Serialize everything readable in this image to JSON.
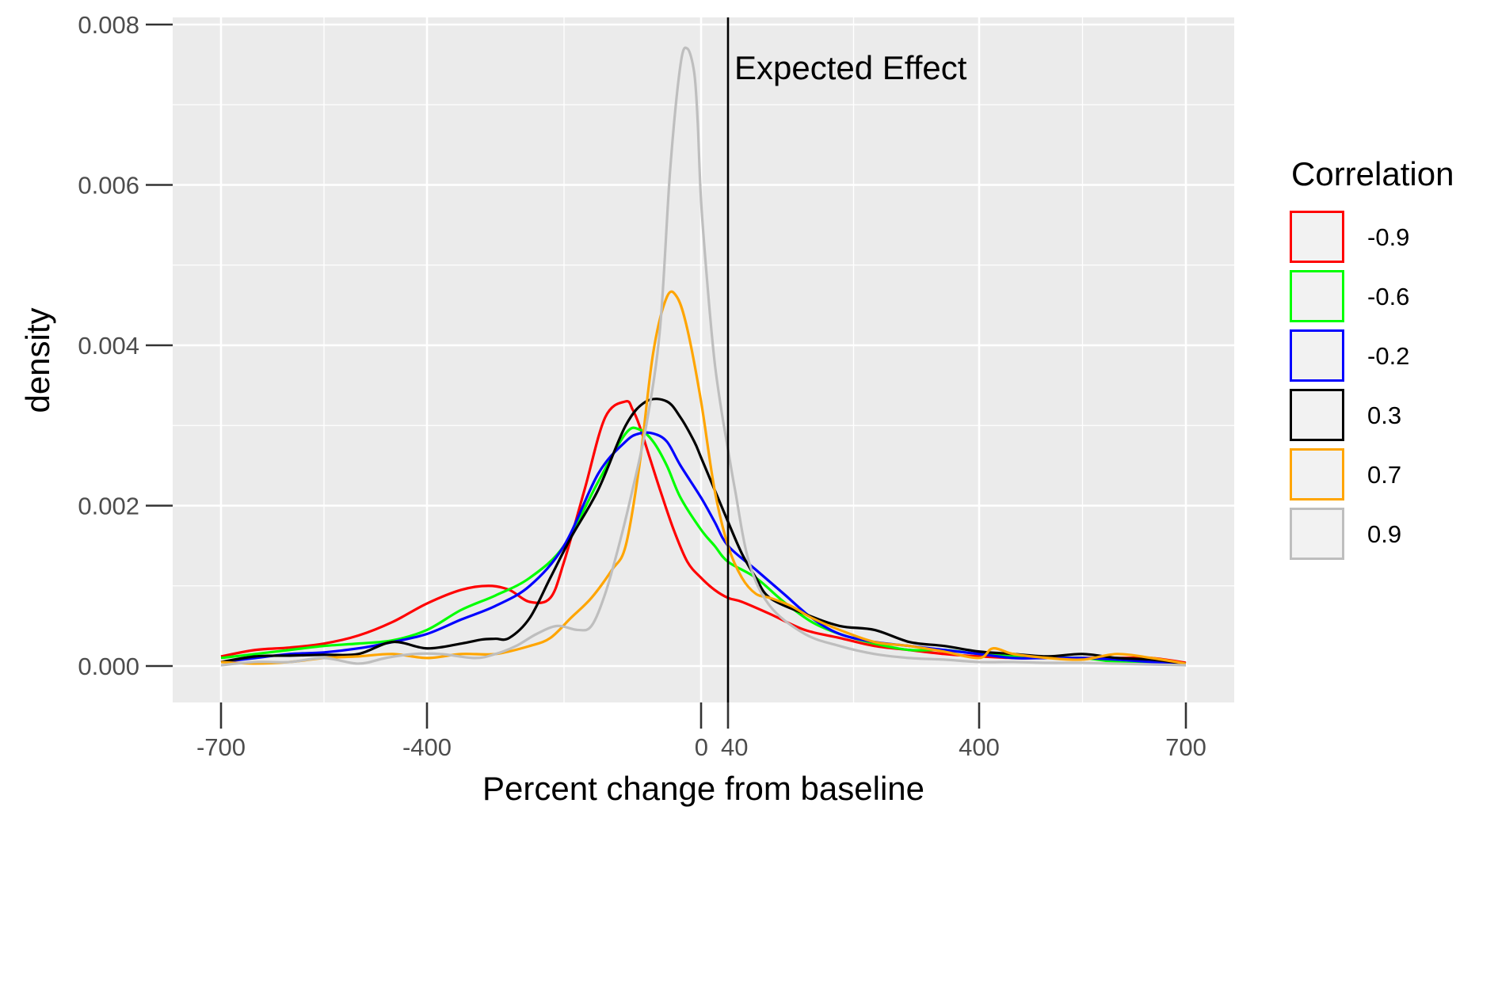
{
  "chart_data": {
    "type": "line",
    "xlabel": "Percent change from baseline",
    "ylabel": "density",
    "xlim": [
      -723,
      723
    ],
    "ylim": [
      -0.0004,
      0.0081
    ],
    "xticks": [
      -700,
      -400,
      0,
      40,
      400,
      700
    ],
    "xtick_labels": [
      "-700",
      "-400",
      "0",
      "40",
      "400",
      "700"
    ],
    "xtick_minor": [
      -550,
      -200,
      220,
      550
    ],
    "yticks": [
      0,
      0.002,
      0.004,
      0.006,
      0.008
    ],
    "ytick_labels": [
      "0.000",
      "0.002",
      "0.004",
      "0.006",
      "0.008"
    ],
    "grid": true,
    "legend": {
      "title": "Correlation",
      "position": "right"
    },
    "annotation": {
      "label": "Expected Effect",
      "x": 40
    },
    "series": [
      {
        "name": "-0.9",
        "color": "#ff0000",
        "x": [
          -700,
          -650,
          -600,
          -550,
          -500,
          -450,
          -400,
          -350,
          -310,
          -280,
          -250,
          -220,
          -200,
          -170,
          -140,
          -110,
          -100,
          -90,
          -75,
          -60,
          -40,
          -20,
          0,
          20,
          40,
          60,
          100,
          150,
          200,
          250,
          300,
          350,
          400,
          450,
          500,
          550,
          600,
          650,
          700
        ],
        "y": [
          0.00012,
          0.0002,
          0.00023,
          0.00028,
          0.00038,
          0.00055,
          0.00078,
          0.00095,
          0.001,
          0.00095,
          0.0008,
          0.00085,
          0.0013,
          0.0022,
          0.0031,
          0.0033,
          0.0032,
          0.003,
          0.0026,
          0.0022,
          0.0017,
          0.0013,
          0.0011,
          0.00095,
          0.00085,
          0.0008,
          0.00065,
          0.00045,
          0.00035,
          0.00025,
          0.0002,
          0.00015,
          0.00012,
          0.0001,
          0.0001,
          0.0001,
          0.0001,
          0.0001,
          4e-05
        ]
      },
      {
        "name": "-0.6",
        "color": "#00ff00",
        "x": [
          -700,
          -650,
          -600,
          -550,
          -500,
          -450,
          -400,
          -350,
          -300,
          -250,
          -200,
          -150,
          -110,
          -90,
          -70,
          -50,
          -30,
          0,
          20,
          40,
          80,
          120,
          160,
          200,
          250,
          300,
          350,
          400,
          450,
          500,
          550,
          600,
          650,
          700
        ],
        "y": [
          0.0001,
          0.00015,
          0.0002,
          0.00025,
          0.00028,
          0.00032,
          0.00045,
          0.0007,
          0.00088,
          0.0011,
          0.0015,
          0.0023,
          0.0029,
          0.00295,
          0.0028,
          0.0025,
          0.0021,
          0.0017,
          0.0015,
          0.0013,
          0.0011,
          0.0008,
          0.00055,
          0.0004,
          0.00028,
          0.0002,
          0.0002,
          0.00015,
          0.00012,
          0.0001,
          0.0001,
          5e-05,
          3e-05,
          2e-05
        ]
      },
      {
        "name": "-0.2",
        "color": "#0000ff",
        "x": [
          -700,
          -650,
          -600,
          -550,
          -500,
          -450,
          -400,
          -350,
          -300,
          -250,
          -200,
          -150,
          -110,
          -90,
          -70,
          -50,
          -30,
          0,
          20,
          40,
          80,
          120,
          160,
          200,
          250,
          300,
          350,
          400,
          450,
          500,
          550,
          600,
          650,
          700
        ],
        "y": [
          5e-05,
          0.0001,
          0.00015,
          0.00017,
          0.00022,
          0.0003,
          0.0004,
          0.00058,
          0.00075,
          0.001,
          0.0015,
          0.0024,
          0.0028,
          0.0029,
          0.0029,
          0.0028,
          0.0025,
          0.0021,
          0.0018,
          0.0015,
          0.0012,
          0.0009,
          0.0006,
          0.0004,
          0.0003,
          0.00025,
          0.0002,
          0.00015,
          0.0001,
          0.0001,
          0.0001,
          8e-05,
          5e-05,
          3e-05
        ]
      },
      {
        "name": "0.3",
        "color": "#000000",
        "x": [
          -700,
          -650,
          -600,
          -550,
          -500,
          -450,
          -400,
          -350,
          -320,
          -300,
          -280,
          -250,
          -220,
          -190,
          -150,
          -110,
          -80,
          -50,
          -30,
          -10,
          0,
          20,
          40,
          60,
          80,
          100,
          150,
          200,
          250,
          300,
          350,
          400,
          450,
          500,
          550,
          600,
          650,
          700
        ],
        "y": [
          5e-05,
          0.00012,
          0.00013,
          0.00014,
          0.00015,
          0.0003,
          0.00022,
          0.00028,
          0.00033,
          0.00034,
          0.00035,
          0.0006,
          0.0011,
          0.0016,
          0.0022,
          0.003,
          0.0033,
          0.0033,
          0.0031,
          0.0028,
          0.0026,
          0.0022,
          0.0018,
          0.0014,
          0.0011,
          0.00085,
          0.00065,
          0.0005,
          0.00045,
          0.0003,
          0.00025,
          0.00018,
          0.00015,
          0.00012,
          0.00015,
          0.0001,
          8e-05,
          3e-05
        ]
      },
      {
        "name": "0.7",
        "color": "#ffa500",
        "x": [
          -700,
          -650,
          -600,
          -550,
          -500,
          -450,
          -400,
          -350,
          -300,
          -250,
          -220,
          -190,
          -160,
          -130,
          -110,
          -90,
          -70,
          -50,
          -35,
          -20,
          0,
          20,
          40,
          60,
          80,
          100,
          130,
          160,
          200,
          250,
          300,
          350,
          400,
          420,
          450,
          500,
          550,
          600,
          650,
          700
        ],
        "y": [
          5e-05,
          3e-05,
          5e-05,
          0.0001,
          0.00012,
          0.00015,
          0.0001,
          0.00015,
          0.00015,
          0.00025,
          0.00035,
          0.0006,
          0.00085,
          0.0012,
          0.0015,
          0.0025,
          0.0039,
          0.0046,
          0.0046,
          0.0042,
          0.0033,
          0.0022,
          0.0015,
          0.0011,
          0.0009,
          0.00085,
          0.00075,
          0.0006,
          0.00045,
          0.0003,
          0.00025,
          0.00018,
          0.0001,
          0.00022,
          0.00015,
          0.0001,
          8e-05,
          0.00015,
          0.0001,
          3e-05
        ]
      },
      {
        "name": "0.9",
        "color": "#bebebe",
        "x": [
          -700,
          -650,
          -600,
          -550,
          -500,
          -460,
          -420,
          -380,
          -330,
          -300,
          -270,
          -240,
          -210,
          -180,
          -160,
          -140,
          -120,
          -100,
          -80,
          -60,
          -45,
          -30,
          -20,
          -10,
          -5,
          0,
          10,
          20,
          30,
          40,
          50,
          70,
          100,
          150,
          200,
          250,
          300,
          350,
          400,
          450,
          500,
          550,
          600,
          650,
          700
        ],
        "y": [
          1e-05,
          5e-05,
          5e-05,
          0.0001,
          3e-05,
          0.0001,
          0.00015,
          0.00015,
          0.0001,
          0.00015,
          0.00025,
          0.0004,
          0.0005,
          0.00045,
          0.0005,
          0.0009,
          0.0015,
          0.0022,
          0.003,
          0.0042,
          0.0062,
          0.0075,
          0.0077,
          0.0074,
          0.0068,
          0.0058,
          0.0047,
          0.0038,
          0.0032,
          0.0027,
          0.0022,
          0.0013,
          0.00075,
          0.0004,
          0.00025,
          0.00015,
          0.0001,
          8e-05,
          5e-05,
          5e-05,
          4e-05,
          4e-05,
          3e-05,
          2e-05,
          1e-05
        ]
      }
    ]
  }
}
